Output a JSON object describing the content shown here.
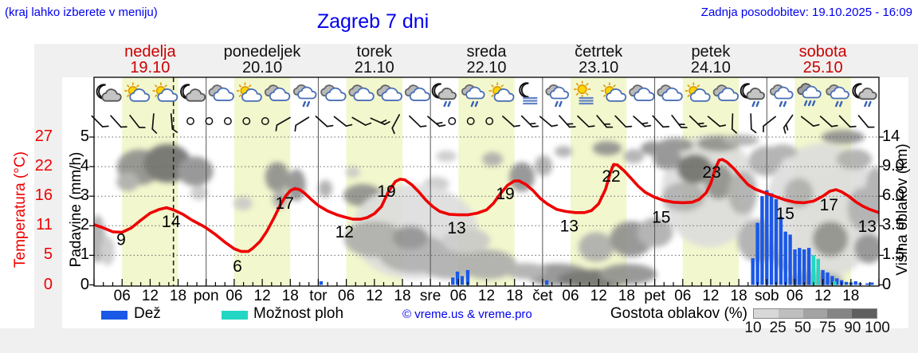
{
  "header": {
    "hint": "(kraj lahko izberete v meniju)",
    "title": "Zagreb 7 dni",
    "updated": "Zadnja posodobitev: 19.10.2025 - 16:09"
  },
  "days": [
    {
      "name": "nedelja",
      "date": "19.10",
      "highlight": true
    },
    {
      "name": "ponedeljek",
      "date": "20.10",
      "highlight": false
    },
    {
      "name": "torek",
      "date": "21.10",
      "highlight": false
    },
    {
      "name": "sreda",
      "date": "22.10",
      "highlight": false
    },
    {
      "name": "četrtek",
      "date": "23.10",
      "highlight": false
    },
    {
      "name": "petek",
      "date": "24.10",
      "highlight": false
    },
    {
      "name": "sobota",
      "date": "25.10",
      "highlight": true
    }
  ],
  "axes": {
    "temp_label": "Temperatura (°C)",
    "temp_ticks": [
      "27",
      "22",
      "16",
      "11",
      "5",
      "0"
    ],
    "precip_label": "Padavine (mm/h)",
    "precip_ticks": [
      "5",
      "4",
      "3",
      "2",
      "1",
      "0"
    ],
    "cloud_label": "Višina oblakov (km)",
    "cloud_ticks": [
      "14",
      "9.0",
      "6.0",
      "3.5",
      "1.5",
      "0"
    ],
    "hour_labels": [
      "06",
      "12",
      "18"
    ],
    "day_abbrevs": [
      "pon",
      "tor",
      "sre",
      "čet",
      "pet",
      "sob"
    ]
  },
  "legend": {
    "rain": "Dež",
    "showers": "Možnost ploh",
    "copyright": "© vreme.us & vreme.pro",
    "cloud_density": "Gostota oblakov (%)",
    "cloud_scale": [
      "10",
      "25",
      "50",
      "75",
      "90",
      "100"
    ],
    "scale_colors": [
      "#d8d8d8",
      "#bfbfbf",
      "#a3a3a3",
      "#858585",
      "#5f5f5f"
    ]
  },
  "colors": {
    "rain": "#1a58e6",
    "showers": "#22d6c3",
    "temp": "#ee0000",
    "day_band": "#f3f7cd",
    "highlight_day": "#cc0000",
    "link_blue": "#0000ee",
    "shade_map": {
      "1": "#dcdcdc",
      "2": "#c8c8c8",
      "3": "#ababab",
      "4": "#8c8c8c",
      "5": "#6a6a6a"
    }
  },
  "chart_data": {
    "type": "line",
    "title": "Zagreb 7 dni meteogram",
    "x_unit": "hours from 19.10 00:00",
    "x_range": [
      0,
      168
    ],
    "precip_axis_range": [
      0,
      5
    ],
    "temp_axis_ticks_c": [
      27,
      22,
      16,
      11,
      5,
      0
    ],
    "cloud_height_ticks_km": [
      "0",
      "1.5",
      "3.5",
      "6.0",
      "9.0",
      "14"
    ],
    "day_band_hours": [
      6,
      18
    ],
    "now_hour": 17,
    "temperature_series": [
      [
        0,
        11
      ],
      [
        2,
        10.4
      ],
      [
        4,
        9.7
      ],
      [
        6,
        9.6
      ],
      [
        8,
        10.4
      ],
      [
        10,
        11.8
      ],
      [
        12,
        13.1
      ],
      [
        14,
        13.8
      ],
      [
        15.5,
        14.1
      ],
      [
        17,
        13.7
      ],
      [
        19,
        12.9
      ],
      [
        21,
        11.8
      ],
      [
        23,
        10.9
      ],
      [
        24,
        10.4
      ],
      [
        26,
        9.2
      ],
      [
        28,
        7.8
      ],
      [
        30,
        6.6
      ],
      [
        31.5,
        6.1
      ],
      [
        33,
        6.1
      ],
      [
        34,
        6.7
      ],
      [
        35.5,
        7.9
      ],
      [
        37,
        9.8
      ],
      [
        38.5,
        12.2
      ],
      [
        40,
        14.8
      ],
      [
        41,
        16.2
      ],
      [
        42,
        17.2
      ],
      [
        43,
        17.6
      ],
      [
        44,
        17.4
      ],
      [
        45,
        16.8
      ],
      [
        46.5,
        15.6
      ],
      [
        48,
        14.5
      ],
      [
        50,
        13.5
      ],
      [
        52,
        12.8
      ],
      [
        54,
        12.3
      ],
      [
        55.5,
        12
      ],
      [
        57,
        12
      ],
      [
        58.5,
        12.3
      ],
      [
        60,
        13
      ],
      [
        61.5,
        14.3
      ],
      [
        63,
        17
      ],
      [
        64.5,
        18.9
      ],
      [
        65.5,
        19.3
      ],
      [
        66.5,
        19.2
      ],
      [
        68,
        18.3
      ],
      [
        69.5,
        17
      ],
      [
        71,
        15.5
      ],
      [
        72.5,
        14.3
      ],
      [
        74,
        13.4
      ],
      [
        76,
        12.9
      ],
      [
        78,
        12.8
      ],
      [
        80,
        12.8
      ],
      [
        82,
        13.1
      ],
      [
        84,
        13.7
      ],
      [
        85.5,
        14.9
      ],
      [
        87,
        16.7
      ],
      [
        88.5,
        18.2
      ],
      [
        90,
        19
      ],
      [
        91,
        19
      ],
      [
        92.5,
        18.3
      ],
      [
        94,
        17.2
      ],
      [
        95.5,
        15.8
      ],
      [
        97,
        14.8
      ],
      [
        99,
        13.8
      ],
      [
        101,
        13.4
      ],
      [
        103,
        13.2
      ],
      [
        105,
        13.2
      ],
      [
        106.5,
        13.6
      ],
      [
        108,
        14.8
      ],
      [
        109.5,
        17.5
      ],
      [
        110.5,
        20.5
      ],
      [
        111.2,
        22
      ],
      [
        112,
        21.9
      ],
      [
        113.5,
        20.8
      ],
      [
        115,
        19.4
      ],
      [
        116.5,
        18
      ],
      [
        118,
        16.9
      ],
      [
        120,
        16
      ],
      [
        122,
        15.4
      ],
      [
        124,
        15.1
      ],
      [
        126,
        15
      ],
      [
        128,
        15.1
      ],
      [
        129.5,
        15.6
      ],
      [
        131,
        16.8
      ],
      [
        132,
        18.5
      ],
      [
        133,
        21.3
      ],
      [
        133.8,
        22.8
      ],
      [
        134.5,
        22.9
      ],
      [
        135.5,
        22.4
      ],
      [
        137,
        21.2
      ],
      [
        138.5,
        19.7
      ],
      [
        140,
        18.3
      ],
      [
        141.5,
        17.5
      ],
      [
        143,
        17
      ],
      [
        144,
        16.7
      ],
      [
        146,
        16.1
      ],
      [
        148,
        15.5
      ],
      [
        150,
        15.1
      ],
      [
        152,
        15
      ],
      [
        154,
        15.3
      ],
      [
        156,
        16.2
      ],
      [
        157.5,
        17.1
      ],
      [
        158.8,
        17.4
      ],
      [
        160,
        17
      ],
      [
        161.5,
        16.2
      ],
      [
        163,
        15.2
      ],
      [
        164.5,
        14.4
      ],
      [
        166,
        13.8
      ],
      [
        168,
        13.2
      ]
    ],
    "temperature_point_labels": [
      {
        "text": "9",
        "hour": 5.8,
        "temp": 8.3
      },
      {
        "text": "14",
        "hour": 16.5,
        "temp": 11.6
      },
      {
        "text": "6",
        "hour": 30.7,
        "temp": 3.4
      },
      {
        "text": "17",
        "hour": 40.8,
        "temp": 14.9
      },
      {
        "text": "12",
        "hour": 53.6,
        "temp": 9.7
      },
      {
        "text": "19",
        "hour": 62.6,
        "temp": 17.1
      },
      {
        "text": "13",
        "hour": 77.6,
        "temp": 10.4
      },
      {
        "text": "19",
        "hour": 88,
        "temp": 16.7
      },
      {
        "text": "13",
        "hour": 101.7,
        "temp": 10.8
      },
      {
        "text": "22",
        "hour": 110.7,
        "temp": 19.9
      },
      {
        "text": "15",
        "hour": 121.4,
        "temp": 12.4
      },
      {
        "text": "23",
        "hour": 132.2,
        "temp": 20.6
      },
      {
        "text": "15",
        "hour": 147.9,
        "temp": 13
      },
      {
        "text": "17",
        "hour": 157.3,
        "temp": 14.6
      },
      {
        "text": "13",
        "hour": 165.5,
        "temp": 10.7
      }
    ],
    "rain_bars_mm_h": [
      [
        48.6,
        0.12
      ],
      [
        76.8,
        0.25
      ],
      [
        77.8,
        0.45
      ],
      [
        78.8,
        0.3
      ],
      [
        80,
        0.5
      ],
      [
        96.9,
        0.15
      ],
      [
        141,
        0.9
      ],
      [
        142,
        2.1
      ],
      [
        143,
        3
      ],
      [
        144,
        3.2
      ],
      [
        145,
        3.1
      ],
      [
        146,
        2.9
      ],
      [
        147,
        2.3
      ],
      [
        148,
        1.8
      ],
      [
        149,
        1.7
      ],
      [
        150,
        1.2
      ],
      [
        151,
        1.25
      ],
      [
        152,
        1.2
      ],
      [
        153,
        1.25
      ],
      [
        156,
        0.5
      ],
      [
        157,
        0.42
      ],
      [
        158,
        0.3
      ],
      [
        159,
        0.22
      ],
      [
        160,
        0.16
      ],
      [
        161,
        0.1
      ],
      [
        162,
        0.08
      ],
      [
        163,
        0.12
      ],
      [
        164,
        0.06
      ],
      [
        165.5,
        0.05
      ],
      [
        166.5,
        0.08
      ]
    ],
    "shower_bars_mm_h": [
      [
        154,
        1.0
      ],
      [
        155,
        0.88
      ],
      [
        158.5,
        0.12
      ]
    ],
    "cloud_blobs": [
      [
        9.7,
        3.98,
        4.8,
        0.6,
        4
      ],
      [
        15.7,
        4.11,
        5.1,
        0.65,
        5
      ],
      [
        21.7,
        3.84,
        3.8,
        0.5,
        4
      ],
      [
        7.2,
        3.49,
        2.4,
        0.32,
        3
      ],
      [
        0.7,
        1.55,
        1.7,
        0.81,
        3
      ],
      [
        2.9,
        1.15,
        1.5,
        0.5,
        2
      ],
      [
        22.5,
        3.11,
        1.9,
        0.24,
        2
      ],
      [
        31.9,
        2.76,
        2,
        0.24,
        2
      ],
      [
        39.2,
        3.65,
        2.6,
        0.5,
        4
      ],
      [
        43.3,
        3.38,
        2,
        0.54,
        4
      ],
      [
        39.9,
        2.9,
        1.7,
        0.32,
        3
      ],
      [
        49.5,
        3.25,
        1.5,
        0.3,
        3
      ],
      [
        57.5,
        3.03,
        4.1,
        0.38,
        4
      ],
      [
        63.8,
        2.92,
        4.6,
        0.35,
        5
      ],
      [
        68.9,
        3,
        3.1,
        0.3,
        3
      ],
      [
        73.3,
        3.41,
        2.7,
        0.24,
        2
      ],
      [
        55.4,
        3.81,
        1.5,
        0.19,
        2
      ],
      [
        68.6,
        1.8,
        13.6,
        1.6,
        1
      ],
      [
        60,
        1.55,
        6.5,
        0.6,
        3
      ],
      [
        68.6,
        1.06,
        7.7,
        0.65,
        3
      ],
      [
        76.2,
        0.74,
        6.8,
        0.54,
        3
      ],
      [
        84.3,
        0.69,
        6.1,
        0.5,
        3
      ],
      [
        67.7,
        1.6,
        3.8,
        0.4,
        4
      ],
      [
        79.7,
        1.5,
        5.1,
        0.43,
        2
      ],
      [
        75.4,
        4.35,
        2.2,
        0.19,
        2
      ],
      [
        85.3,
        4.25,
        2.2,
        0.24,
        3
      ],
      [
        91.6,
        3.65,
        2.7,
        0.5,
        4
      ],
      [
        96.2,
        4.03,
        1.9,
        0.35,
        3
      ],
      [
        99.3,
        0.34,
        6.8,
        0.38,
        4
      ],
      [
        106.9,
        0.2,
        7.7,
        0.32,
        5
      ],
      [
        114.3,
        0.36,
        6.1,
        0.35,
        4
      ],
      [
        92.4,
        0.47,
        4.4,
        0.27,
        3
      ],
      [
        100.5,
        4.51,
        1.9,
        0.19,
        3
      ],
      [
        109.8,
        4.62,
        3.1,
        0.24,
        4
      ],
      [
        115.5,
        4.35,
        2.2,
        0.24,
        3
      ],
      [
        119.7,
        4.62,
        2.7,
        0.24,
        4
      ],
      [
        107.5,
        1.28,
        3.8,
        0.5,
        3
      ],
      [
        115,
        1.55,
        4.6,
        0.6,
        4
      ],
      [
        120.1,
        1.77,
        3.8,
        0.5,
        3
      ],
      [
        131.7,
        3.17,
        10.2,
        1.9,
        1
      ],
      [
        122.8,
        4.25,
        3.1,
        0.35,
        4
      ],
      [
        128.6,
        3.92,
        3.8,
        0.5,
        5
      ],
      [
        133.7,
        3.49,
        3.1,
        0.6,
        4
      ],
      [
        126.2,
        2.98,
        4.6,
        0.5,
        3
      ],
      [
        138.8,
        3.11,
        3.1,
        0.73,
        3
      ],
      [
        124.5,
        4.73,
        3.8,
        0.24,
        4
      ],
      [
        133.7,
        4.78,
        4.6,
        0.27,
        4
      ],
      [
        138.5,
        4.89,
        3.8,
        0.19,
        3
      ],
      [
        143.9,
        4.19,
        3.8,
        0.5,
        3
      ],
      [
        142.3,
        1.5,
        4.6,
        0.73,
        3
      ],
      [
        149.2,
        0.96,
        3.8,
        0.5,
        3
      ],
      [
        155.9,
        2.49,
        12.3,
        2.3,
        1
      ],
      [
        150.8,
        3.11,
        3.1,
        0.5,
        3
      ],
      [
        157.6,
        1.55,
        3.8,
        0.6,
        4
      ],
      [
        164.4,
        2.57,
        3.1,
        0.73,
        3
      ],
      [
        162.7,
        4.25,
        3.8,
        0.35,
        3
      ],
      [
        154.2,
        0.15,
        6.1,
        0.3,
        3
      ],
      [
        165.8,
        1.23,
        3.1,
        0.5,
        4
      ],
      [
        147.4,
        4.51,
        3.1,
        0.24,
        3
      ],
      [
        160.3,
        5,
        4.6,
        0.24,
        4
      ],
      [
        167.2,
        3.03,
        2.2,
        0.97,
        3
      ]
    ],
    "weather_icons": [
      "moon-cloud",
      "sun-cloud",
      "sun-cloud",
      "moon-cloud",
      "cloud",
      "sun-cloud",
      "cloud",
      "cloud-rain",
      "cloud",
      "cloud",
      "cloud",
      "cloud",
      "moon-rain",
      "cloud-rain",
      "sun-cloud",
      "moon-fog",
      "cloud-rain",
      "sun-fog",
      "sun-cloud",
      "cloud",
      "cloud",
      "sun-cloud",
      "cloud",
      "moon-rain",
      "cloud-rain",
      "cloud-rain-heavy",
      "cloud-rain",
      "moon-rain"
    ],
    "wind_symbols": [
      [
        45,
        1
      ],
      [
        48,
        1
      ],
      [
        52,
        1
      ],
      [
        95,
        1
      ],
      [
        85,
        1
      ],
      null,
      null,
      null,
      null,
      null,
      [
        150,
        1
      ],
      [
        148,
        1
      ],
      [
        42,
        1
      ],
      [
        38,
        1
      ],
      [
        30,
        1
      ],
      [
        24,
        2
      ],
      [
        118,
        1
      ],
      [
        44,
        1
      ],
      [
        40,
        2
      ],
      null,
      null,
      null,
      [
        42,
        1
      ],
      [
        45,
        2
      ],
      [
        40,
        1
      ],
      [
        48,
        2
      ],
      [
        44,
        1
      ],
      [
        50,
        2
      ],
      [
        46,
        1
      ],
      [
        42,
        2
      ],
      [
        47,
        1
      ],
      [
        52,
        2
      ],
      [
        44,
        2
      ],
      [
        40,
        1
      ],
      [
        92,
        1
      ],
      [
        88,
        1
      ],
      [
        142,
        1
      ],
      [
        125,
        2
      ],
      [
        38,
        1
      ],
      [
        42,
        1
      ],
      [
        46,
        1
      ],
      [
        50,
        1
      ]
    ]
  }
}
